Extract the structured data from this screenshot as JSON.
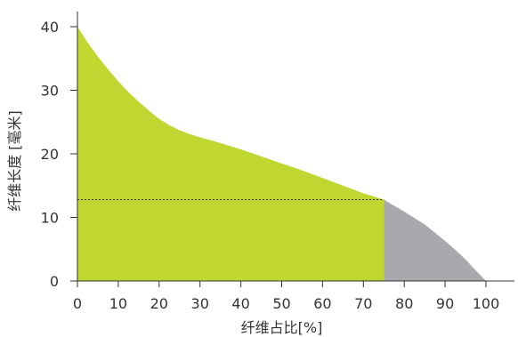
{
  "chart_data": {
    "type": "area",
    "xlabel": "纤维占比[%]",
    "ylabel": "纤维长度 [毫米]",
    "xlim": [
      0,
      100
    ],
    "ylim": [
      0,
      40
    ],
    "x_ticks": [
      0,
      10,
      20,
      30,
      40,
      50,
      60,
      70,
      80,
      90,
      100
    ],
    "y_ticks": [
      0,
      10,
      20,
      30,
      40
    ],
    "grid": false,
    "colors": {
      "primary": "#bfd730",
      "secondary": "#a7a9ac",
      "axis": "#333333",
      "marker": "#333333"
    },
    "curve": [
      {
        "x": 0,
        "y": 40.0
      },
      {
        "x": 2.5,
        "y": 37.5
      },
      {
        "x": 5,
        "y": 35.3
      },
      {
        "x": 7.5,
        "y": 33.3
      },
      {
        "x": 10,
        "y": 31.4
      },
      {
        "x": 12.5,
        "y": 29.7
      },
      {
        "x": 15,
        "y": 28.2
      },
      {
        "x": 17.5,
        "y": 26.8
      },
      {
        "x": 20,
        "y": 25.5
      },
      {
        "x": 22.5,
        "y": 24.5
      },
      {
        "x": 25,
        "y": 23.7
      },
      {
        "x": 27.5,
        "y": 23.1
      },
      {
        "x": 30,
        "y": 22.6
      },
      {
        "x": 35,
        "y": 21.7
      },
      {
        "x": 40,
        "y": 20.7
      },
      {
        "x": 45,
        "y": 19.6
      },
      {
        "x": 50,
        "y": 18.5
      },
      {
        "x": 55,
        "y": 17.4
      },
      {
        "x": 60,
        "y": 16.2
      },
      {
        "x": 65,
        "y": 15.0
      },
      {
        "x": 70,
        "y": 13.8
      },
      {
        "x": 75,
        "y": 12.8
      },
      {
        "x": 80,
        "y": 10.9
      },
      {
        "x": 85,
        "y": 8.9
      },
      {
        "x": 90,
        "y": 6.3
      },
      {
        "x": 93,
        "y": 4.6
      },
      {
        "x": 95,
        "y": 3.4
      },
      {
        "x": 97,
        "y": 2.0
      },
      {
        "x": 98.5,
        "y": 1.0
      },
      {
        "x": 100,
        "y": 0.0
      }
    ],
    "split_x": 75,
    "reference_y": 12.8
  }
}
